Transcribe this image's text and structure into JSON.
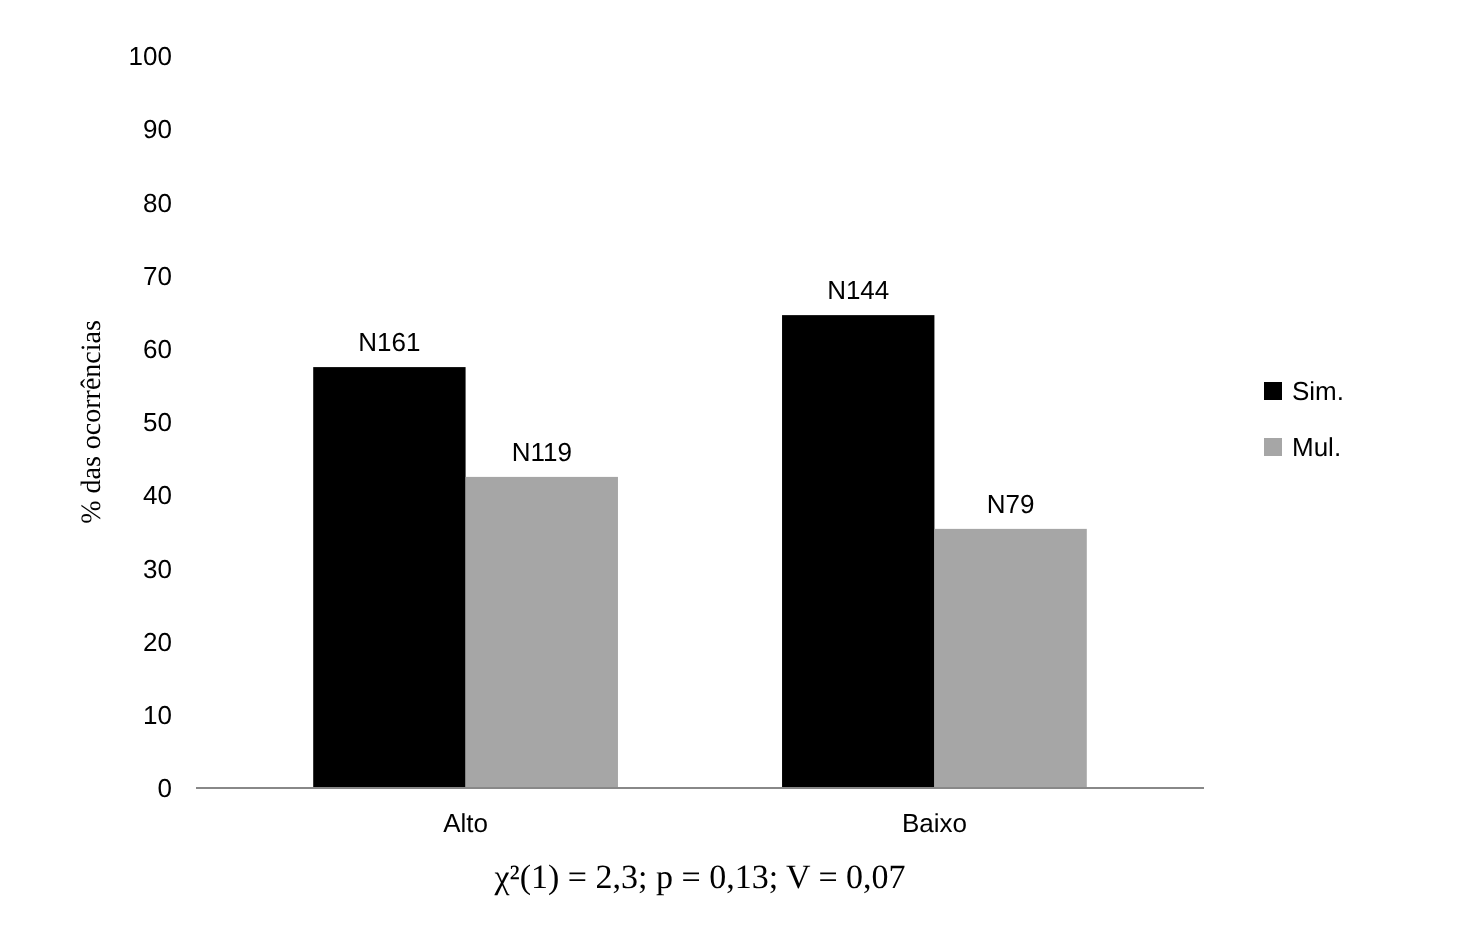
{
  "chart_data": {
    "type": "bar",
    "ylabel": "% das ocorrências",
    "categories": [
      "Alto",
      "Baixo"
    ],
    "series": [
      {
        "name": "Sim.",
        "color": "#000000",
        "values": [
          57.5,
          64.6
        ],
        "value_labels": [
          "N161",
          "N144"
        ]
      },
      {
        "name": "Mul.",
        "color": "#a6a6a6",
        "values": [
          42.5,
          35.4
        ],
        "value_labels": [
          "N119",
          "N79"
        ]
      }
    ],
    "ylim": [
      0,
      100
    ],
    "yticks": [
      0,
      10,
      20,
      30,
      40,
      50,
      60,
      70,
      80,
      90,
      100
    ],
    "grid": false,
    "legend": "right",
    "annotations": [
      "χ²(1) = 2,3; p = 0,13; V = 0,07"
    ]
  }
}
